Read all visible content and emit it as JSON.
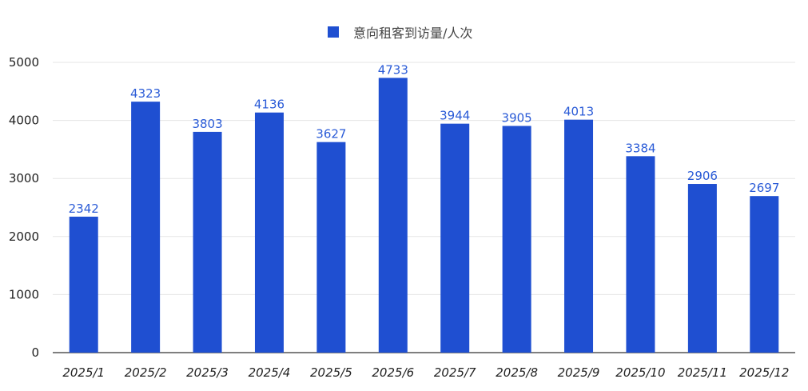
{
  "chart_data": {
    "type": "bar",
    "categories": [
      "2025/1",
      "2025/2",
      "2025/3",
      "2025/4",
      "2025/5",
      "2025/6",
      "2025/7",
      "2025/8",
      "2025/9",
      "2025/10",
      "2025/11",
      "2025/12"
    ],
    "series": [
      {
        "name": "意向租客到访量/人次",
        "values": [
          2342,
          4323,
          3803,
          4136,
          3627,
          4733,
          3944,
          3905,
          4013,
          3384,
          2906,
          2697
        ]
      }
    ],
    "title": "",
    "xlabel": "",
    "ylabel": "",
    "ylim": [
      0,
      5000
    ],
    "yticks": [
      0,
      1000,
      2000,
      3000,
      4000,
      5000
    ],
    "grid": true,
    "legend_position": "top-center",
    "bar_color": "#1f4fd1",
    "label_color": "#2a5bd7",
    "grid_color": "#e5e5e5"
  }
}
